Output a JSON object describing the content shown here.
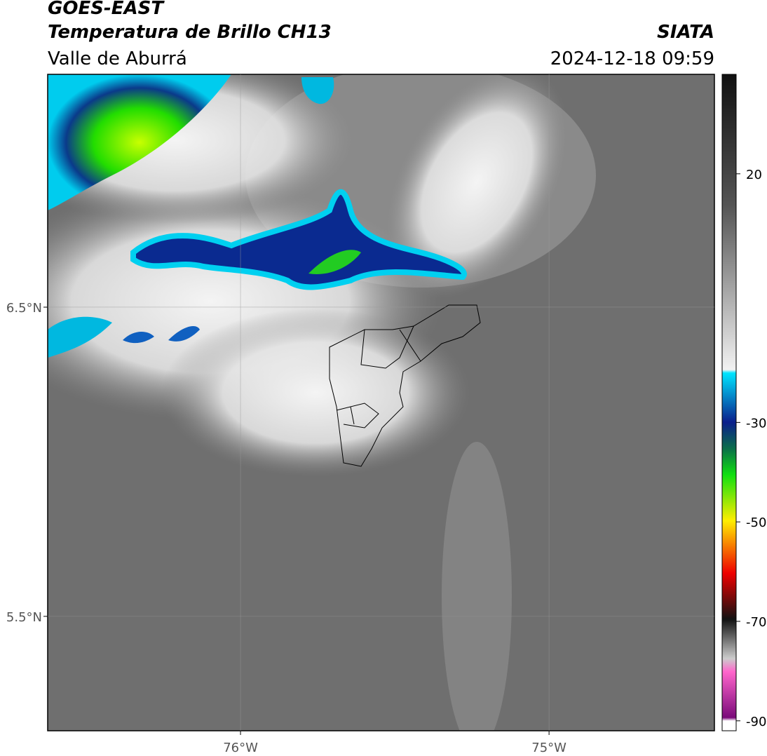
{
  "header": {
    "title": "GOES-EAST",
    "subtitle": "Temperatura de Brillo CH13",
    "region": "Valle de Aburrá",
    "source": "SIATA",
    "timestamp": "2024-12-18 09:59"
  },
  "map": {
    "xlim": [
      -76.625,
      -74.464
    ],
    "ylim": [
      5.13,
      7.253
    ],
    "xticks": [
      {
        "value": -76,
        "label": "76°W"
      },
      {
        "value": -75,
        "label": "75°W"
      }
    ],
    "yticks": [
      {
        "value": 6.5,
        "label": "6.5°N"
      },
      {
        "value": 5.5,
        "label": "5.5°N"
      }
    ]
  },
  "colorbar": {
    "lim": [
      -92,
      40
    ],
    "ticks": [
      20,
      -30,
      -50,
      -70,
      -90
    ]
  }
}
